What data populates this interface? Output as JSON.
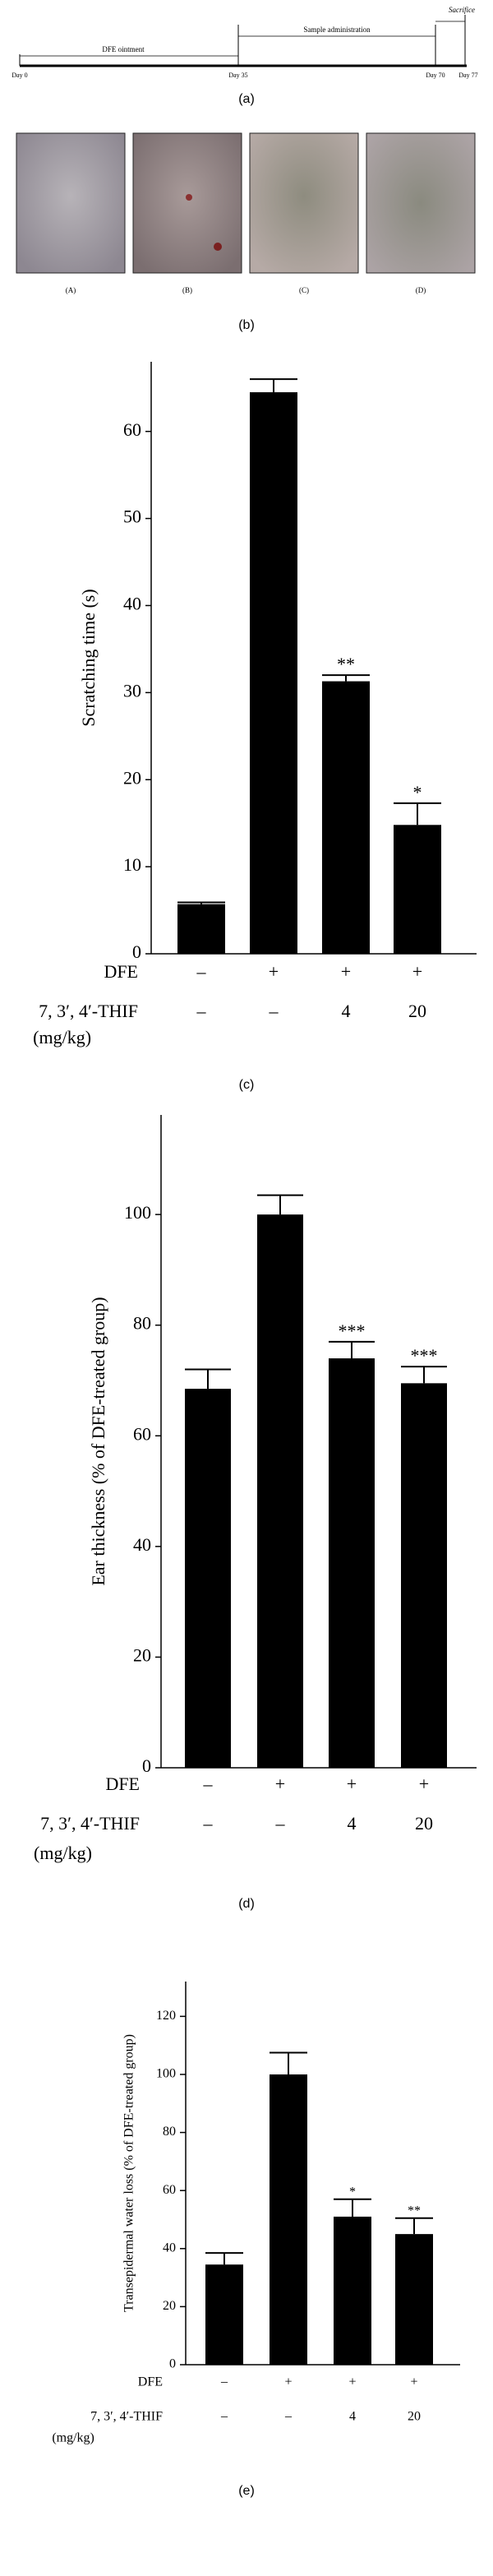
{
  "timeline": {
    "days": [
      "Day 0",
      "Day 35",
      "Day 70",
      "Day 77"
    ],
    "phases": [
      "DFE ointment",
      "Sample administration"
    ],
    "endpoint": "Sacrifice"
  },
  "photos": {
    "labels": [
      "(A)",
      "(B)",
      "(C)",
      "(D)"
    ]
  },
  "panel_labels": [
    "(a)",
    "(b)",
    "(c)",
    "(d)",
    "(e)"
  ],
  "chart_data": [
    {
      "type": "bar",
      "y_label": "Scratching time (s)",
      "color": "#000000",
      "values": [
        5.7,
        64.5,
        31.3,
        14.8
      ],
      "errors": [
        0.2,
        1.5,
        0.7,
        2.5
      ],
      "annotations": [
        null,
        null,
        "**",
        "*"
      ],
      "ylim": [
        0,
        68
      ],
      "yticks": [
        0,
        10,
        20,
        30,
        40,
        50,
        60
      ],
      "treatment_rows": [
        {
          "name": "DFE",
          "labels": [
            "–",
            "+",
            "+",
            "+"
          ]
        },
        {
          "name": "7, 3′, 4′-THIF",
          "unit": "(mg/kg)",
          "labels": [
            "–",
            "–",
            "4",
            "20"
          ]
        }
      ]
    },
    {
      "type": "bar",
      "y_label": "Ear thickness (% of DFE-treated group)",
      "color": "#000000",
      "values": [
        68.5,
        100,
        74,
        69.5
      ],
      "errors": [
        3.5,
        3.5,
        3,
        3
      ],
      "annotations": [
        null,
        null,
        "***",
        "***"
      ],
      "ylim": [
        0,
        118
      ],
      "yticks": [
        0,
        20,
        40,
        60,
        80,
        100
      ],
      "treatment_rows": [
        {
          "name": "DFE",
          "labels": [
            "–",
            "+",
            "+",
            "+"
          ]
        },
        {
          "name": "7, 3′, 4′-THIF",
          "unit": "(mg/kg)",
          "labels": [
            "–",
            "–",
            "4",
            "20"
          ]
        }
      ]
    },
    {
      "type": "bar",
      "y_label": "Transepidermal water loss (% of DFE-treated group)",
      "color": "#000000",
      "values": [
        34.5,
        100,
        51,
        45
      ],
      "errors": [
        4,
        7.5,
        6,
        5.5
      ],
      "annotations": [
        null,
        null,
        "*",
        "**"
      ],
      "ylim": [
        0,
        132
      ],
      "yticks": [
        0,
        20,
        40,
        60,
        80,
        100,
        120
      ],
      "treatment_rows": [
        {
          "name": "DFE",
          "labels": [
            "–",
            "+",
            "+",
            "+"
          ]
        },
        {
          "name": "7, 3′, 4′-THIF",
          "unit": "(mg/kg)",
          "labels": [
            "–",
            "–",
            "4",
            "20"
          ]
        }
      ]
    }
  ]
}
